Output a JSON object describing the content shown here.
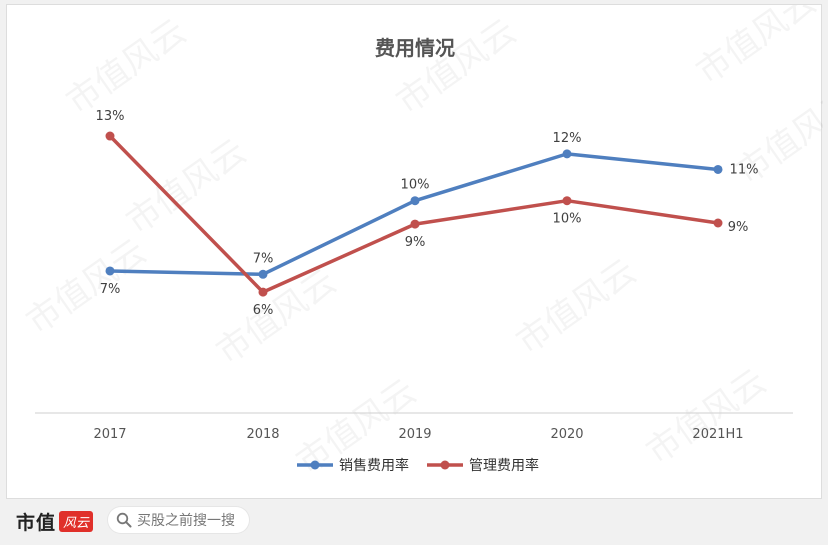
{
  "watermark": "市值风云",
  "footer": {
    "brand_name": "市值",
    "brand_mark": "风云",
    "search_text": "买股之前搜一搜"
  },
  "chart_data": {
    "type": "line",
    "title": "费用情况",
    "categories": [
      "2017",
      "2018",
      "2019",
      "2020",
      "2021H1"
    ],
    "series": [
      {
        "name": "销售费用率",
        "values": [
          7,
          7,
          10,
          12,
          11
        ],
        "labels": [
          "7%",
          "7%",
          "10%",
          "12%",
          "11%"
        ],
        "color": "#4f7fbf"
      },
      {
        "name": "管理费用率",
        "values": [
          13,
          6,
          9,
          10,
          9
        ],
        "labels": [
          "13%",
          "6%",
          "9%",
          "10%",
          "9%"
        ],
        "color": "#c0504d"
      }
    ],
    "exact_values": {
      "销售费用率": [
        6.85,
        6.7,
        10.0,
        12.1,
        11.4
      ],
      "管理费用率": [
        12.9,
        5.9,
        8.95,
        10.0,
        9.0
      ]
    },
    "ylim": [
      0,
      14
    ],
    "grid": false,
    "legend_position": "bottom"
  }
}
